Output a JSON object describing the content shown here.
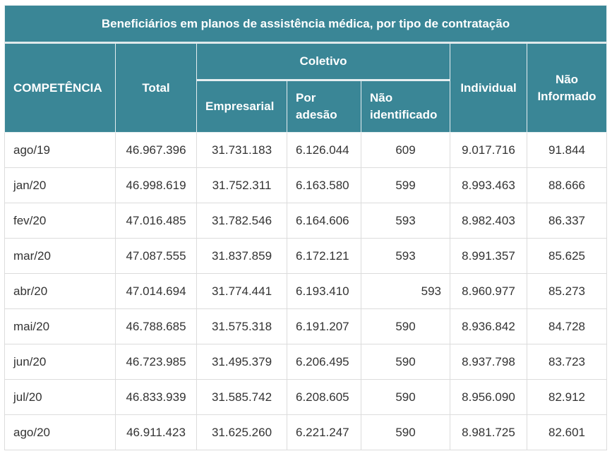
{
  "table": {
    "title": "Beneficiários em planos de assistência médica, por tipo de contratação",
    "headers": {
      "competencia": "COMPETÊNCIA",
      "total": "Total",
      "coletivo": "Coletivo",
      "empresarial": "Empresarial",
      "por_adesao": "Por adesão",
      "nao_identificado": "Não identificado",
      "individual": "Individual",
      "nao_informado": "Não Informado"
    },
    "rows": [
      {
        "competencia": "ago/19",
        "total": "46.967.396",
        "empresarial": "31.731.183",
        "por_adesao": "6.126.044",
        "nao_identificado": "609",
        "individual": "9.017.716",
        "nao_informado": "91.844"
      },
      {
        "competencia": "jan/20",
        "total": "46.998.619",
        "empresarial": "31.752.311",
        "por_adesao": "6.163.580",
        "nao_identificado": "599",
        "individual": "8.993.463",
        "nao_informado": "88.666"
      },
      {
        "competencia": "fev/20",
        "total": "47.016.485",
        "empresarial": "31.782.546",
        "por_adesao": "6.164.606",
        "nao_identificado": "593",
        "individual": "8.982.403",
        "nao_informado": "86.337"
      },
      {
        "competencia": "mar/20",
        "total": "47.087.555",
        "empresarial": "31.837.859",
        "por_adesao": "6.172.121",
        "nao_identificado": "593",
        "individual": "8.991.357",
        "nao_informado": "85.625"
      },
      {
        "competencia": "abr/20",
        "total": "47.014.694",
        "empresarial": "31.774.441",
        "por_adesao": "6.193.410",
        "nao_identificado": "593",
        "individual": "8.960.977",
        "nao_informado": "85.273"
      },
      {
        "competencia": "mai/20",
        "total": "46.788.685",
        "empresarial": "31.575.318",
        "por_adesao": "6.191.207",
        "nao_identificado": "590",
        "individual": "8.936.842",
        "nao_informado": "84.728"
      },
      {
        "competencia": "jun/20",
        "total": "46.723.985",
        "empresarial": "31.495.379",
        "por_adesao": "6.206.495",
        "nao_identificado": "590",
        "individual": "8.937.798",
        "nao_informado": "83.723"
      },
      {
        "competencia": "jul/20",
        "total": "46.833.939",
        "empresarial": "31.585.742",
        "por_adesao": "6.208.605",
        "nao_identificado": "590",
        "individual": "8.956.090",
        "nao_informado": "82.912"
      },
      {
        "competencia": "ago/20",
        "total": "46.911.423",
        "empresarial": "31.625.260",
        "por_adesao": "6.221.247",
        "nao_identificado": "590",
        "individual": "8.981.725",
        "nao_informado": "82.601"
      }
    ],
    "nao_identificado_align": [
      "center",
      "center",
      "center",
      "center",
      "right",
      "center",
      "center",
      "center",
      "center"
    ]
  },
  "colors": {
    "header_bg": "#3a8696",
    "header_text": "#ffffff",
    "body_text": "#333333",
    "grid": "#dcdcdc"
  }
}
